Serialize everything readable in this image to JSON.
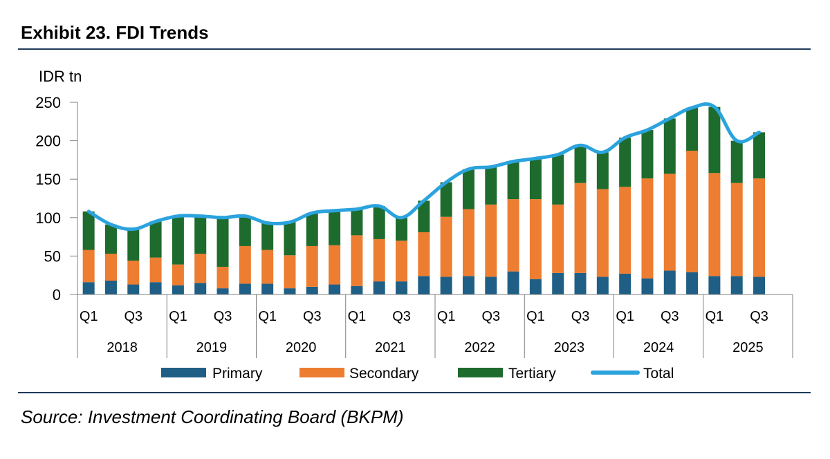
{
  "header": {
    "title": "Exhibit 23. FDI Trends"
  },
  "footer": {
    "source": "Source: Investment Coordinating Board (BKPM)"
  },
  "colors": {
    "primary": "#1f5f85",
    "secondary": "#ed7d31",
    "tertiary": "#1e6b2e",
    "total": "#2ba3dd",
    "rule": "#1f3a5a"
  },
  "chart_data": {
    "type": "bar",
    "stacked": true,
    "ylabel": "IDR tn",
    "ylim": [
      0,
      250
    ],
    "yticks": [
      0,
      50,
      100,
      150,
      200,
      250
    ],
    "x_quarter_labels": [
      "Q1",
      "",
      "Q3",
      ""
    ],
    "years": [
      "2018",
      "2019",
      "2020",
      "2021",
      "2022",
      "2023",
      "2024",
      "2025"
    ],
    "legend_position": "bottom",
    "series": [
      {
        "name": "Primary",
        "color": "#1f5f85",
        "values": [
          16,
          18,
          13,
          16,
          12,
          15,
          8,
          14,
          14,
          8,
          10,
          13,
          11,
          17,
          17,
          24,
          23,
          24,
          23,
          30,
          20,
          28,
          28,
          23,
          27,
          21,
          31,
          29,
          24,
          24,
          23
        ]
      },
      {
        "name": "Secondary",
        "color": "#ed7d31",
        "values": [
          42,
          35,
          31,
          32,
          27,
          38,
          28,
          49,
          44,
          43,
          53,
          51,
          66,
          55,
          53,
          57,
          78,
          87,
          94,
          94,
          104,
          89,
          117,
          114,
          113,
          130,
          126,
          158,
          134,
          121,
          128
        ]
      },
      {
        "name": "Tertiary",
        "color": "#1e6b2e",
        "values": [
          50,
          38,
          41,
          47,
          63,
          49,
          64,
          39,
          35,
          43,
          43,
          45,
          34,
          43,
          30,
          41,
          45,
          52,
          49,
          49,
          53,
          65,
          49,
          48,
          64,
          63,
          72,
          56,
          86,
          55,
          60
        ]
      },
      {
        "name": "Total",
        "color": "#2ba3dd",
        "type": "line",
        "values": [
          108,
          91,
          85,
          95,
          102,
          102,
          100,
          102,
          93,
          94,
          106,
          109,
          111,
          115,
          100,
          122,
          146,
          163,
          166,
          173,
          177,
          182,
          194,
          185,
          204,
          214,
          229,
          243,
          244,
          200,
          211
        ]
      }
    ]
  }
}
